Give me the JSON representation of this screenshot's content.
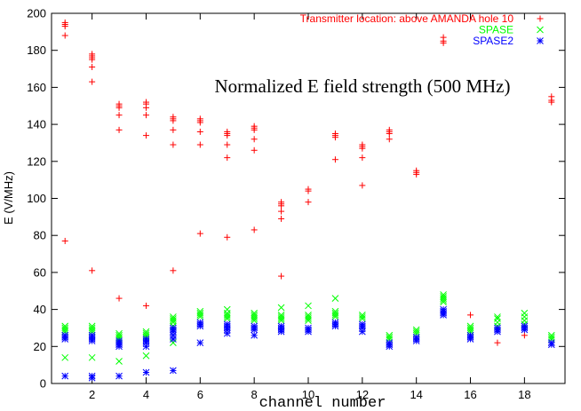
{
  "chart_data": {
    "type": "scatter",
    "title": "Normalized E field strength (500 MHz)",
    "xlabel": "channel number",
    "ylabel": "E (V/MHz)",
    "xlim": [
      0.5,
      19.5
    ],
    "ylim": [
      0,
      200
    ],
    "xticks": [
      2,
      4,
      6,
      8,
      10,
      12,
      14,
      16,
      18
    ],
    "yticks": [
      0,
      20,
      40,
      60,
      80,
      100,
      120,
      140,
      160,
      180,
      200
    ],
    "grid": false,
    "legend_position": "top-right",
    "series": [
      {
        "name": "Transmitter location: above AMANDA hole 10",
        "color": "#ff0000",
        "marker": "plus",
        "points": [
          [
            1,
            195
          ],
          [
            1,
            194
          ],
          [
            1,
            193
          ],
          [
            1,
            188
          ],
          [
            1,
            77
          ],
          [
            2,
            178
          ],
          [
            2,
            177
          ],
          [
            2,
            176
          ],
          [
            2,
            175
          ],
          [
            2,
            171
          ],
          [
            2,
            163
          ],
          [
            2,
            61
          ],
          [
            3,
            151
          ],
          [
            3,
            150
          ],
          [
            3,
            149
          ],
          [
            3,
            145
          ],
          [
            3,
            137
          ],
          [
            3,
            46
          ],
          [
            4,
            152
          ],
          [
            4,
            151
          ],
          [
            4,
            149
          ],
          [
            4,
            145
          ],
          [
            4,
            134
          ],
          [
            4,
            42
          ],
          [
            5,
            144
          ],
          [
            5,
            143
          ],
          [
            5,
            142
          ],
          [
            5,
            137
          ],
          [
            5,
            129
          ],
          [
            5,
            61
          ],
          [
            6,
            143
          ],
          [
            6,
            142
          ],
          [
            6,
            141
          ],
          [
            6,
            136
          ],
          [
            6,
            129
          ],
          [
            6,
            81
          ],
          [
            7,
            136
          ],
          [
            7,
            135
          ],
          [
            7,
            134
          ],
          [
            7,
            129
          ],
          [
            7,
            122
          ],
          [
            7,
            79
          ],
          [
            8,
            139
          ],
          [
            8,
            138
          ],
          [
            8,
            137
          ],
          [
            8,
            132
          ],
          [
            8,
            126
          ],
          [
            8,
            83
          ],
          [
            9,
            98
          ],
          [
            9,
            97
          ],
          [
            9,
            96
          ],
          [
            9,
            93
          ],
          [
            9,
            89
          ],
          [
            9,
            58
          ],
          [
            10,
            105
          ],
          [
            10,
            104
          ],
          [
            10,
            98
          ],
          [
            11,
            135
          ],
          [
            11,
            134
          ],
          [
            11,
            133
          ],
          [
            11,
            121
          ],
          [
            12,
            129
          ],
          [
            12,
            128
          ],
          [
            12,
            127
          ],
          [
            12,
            122
          ],
          [
            12,
            107
          ],
          [
            13,
            137
          ],
          [
            13,
            136
          ],
          [
            13,
            135
          ],
          [
            13,
            132
          ],
          [
            14,
            115
          ],
          [
            14,
            114
          ],
          [
            14,
            113
          ],
          [
            15,
            187
          ],
          [
            15,
            185
          ],
          [
            15,
            184
          ],
          [
            16,
            37
          ],
          [
            17,
            22
          ],
          [
            18,
            26
          ],
          [
            19,
            155
          ],
          [
            19,
            153
          ],
          [
            19,
            152
          ]
        ]
      },
      {
        "name": "SPASE",
        "color": "#00ff00",
        "marker": "cross",
        "points": [
          [
            1,
            31
          ],
          [
            1,
            30
          ],
          [
            1,
            29
          ],
          [
            1,
            28
          ],
          [
            1,
            14
          ],
          [
            2,
            31
          ],
          [
            2,
            30
          ],
          [
            2,
            29
          ],
          [
            2,
            28
          ],
          [
            2,
            14
          ],
          [
            3,
            27
          ],
          [
            3,
            26
          ],
          [
            3,
            25
          ],
          [
            3,
            24
          ],
          [
            3,
            12
          ],
          [
            4,
            28
          ],
          [
            4,
            27
          ],
          [
            4,
            26
          ],
          [
            4,
            25
          ],
          [
            4,
            15
          ],
          [
            5,
            36
          ],
          [
            5,
            35
          ],
          [
            5,
            34
          ],
          [
            5,
            33
          ],
          [
            5,
            31
          ],
          [
            5,
            22
          ],
          [
            6,
            39
          ],
          [
            6,
            38
          ],
          [
            6,
            37
          ],
          [
            6,
            36
          ],
          [
            7,
            40
          ],
          [
            7,
            38
          ],
          [
            7,
            37
          ],
          [
            7,
            36
          ],
          [
            7,
            35
          ],
          [
            8,
            38
          ],
          [
            8,
            37
          ],
          [
            8,
            36
          ],
          [
            8,
            35
          ],
          [
            8,
            34
          ],
          [
            9,
            41
          ],
          [
            9,
            37
          ],
          [
            9,
            36
          ],
          [
            9,
            35
          ],
          [
            9,
            34
          ],
          [
            10,
            42
          ],
          [
            10,
            37
          ],
          [
            10,
            36
          ],
          [
            10,
            35
          ],
          [
            10,
            34
          ],
          [
            11,
            46
          ],
          [
            11,
            39
          ],
          [
            11,
            38
          ],
          [
            11,
            37
          ],
          [
            11,
            36
          ],
          [
            12,
            37
          ],
          [
            12,
            36
          ],
          [
            12,
            35
          ],
          [
            13,
            26
          ],
          [
            13,
            25
          ],
          [
            13,
            24
          ],
          [
            14,
            29
          ],
          [
            14,
            28
          ],
          [
            14,
            27
          ],
          [
            15,
            48
          ],
          [
            15,
            47
          ],
          [
            15,
            46
          ],
          [
            15,
            45
          ],
          [
            15,
            44
          ],
          [
            16,
            31
          ],
          [
            16,
            30
          ],
          [
            16,
            29
          ],
          [
            16,
            28
          ],
          [
            17,
            36
          ],
          [
            17,
            35
          ],
          [
            17,
            33
          ],
          [
            17,
            31
          ],
          [
            18,
            38
          ],
          [
            18,
            36
          ],
          [
            18,
            34
          ],
          [
            18,
            32
          ],
          [
            19,
            26
          ],
          [
            19,
            25
          ],
          [
            19,
            24
          ]
        ]
      },
      {
        "name": "SPASE2",
        "color": "#0000ff",
        "marker": "star",
        "points": [
          [
            1,
            26
          ],
          [
            1,
            25
          ],
          [
            1,
            24
          ],
          [
            1,
            4
          ],
          [
            2,
            26
          ],
          [
            2,
            25
          ],
          [
            2,
            24
          ],
          [
            2,
            23
          ],
          [
            2,
            4
          ],
          [
            2,
            3
          ],
          [
            3,
            23
          ],
          [
            3,
            22
          ],
          [
            3,
            21
          ],
          [
            3,
            20
          ],
          [
            3,
            4
          ],
          [
            4,
            24
          ],
          [
            4,
            23
          ],
          [
            4,
            22
          ],
          [
            4,
            20
          ],
          [
            4,
            6
          ],
          [
            5,
            30
          ],
          [
            5,
            29
          ],
          [
            5,
            28
          ],
          [
            5,
            26
          ],
          [
            5,
            24
          ],
          [
            5,
            7
          ],
          [
            6,
            33
          ],
          [
            6,
            32
          ],
          [
            6,
            31
          ],
          [
            6,
            22
          ],
          [
            7,
            32
          ],
          [
            7,
            31
          ],
          [
            7,
            30
          ],
          [
            7,
            29
          ],
          [
            7,
            27
          ],
          [
            8,
            31
          ],
          [
            8,
            30
          ],
          [
            8,
            29
          ],
          [
            8,
            26
          ],
          [
            9,
            31
          ],
          [
            9,
            30
          ],
          [
            9,
            29
          ],
          [
            9,
            28
          ],
          [
            10,
            30
          ],
          [
            10,
            29
          ],
          [
            10,
            28
          ],
          [
            11,
            33
          ],
          [
            11,
            32
          ],
          [
            11,
            31
          ],
          [
            12,
            32
          ],
          [
            12,
            31
          ],
          [
            12,
            30
          ],
          [
            12,
            28
          ],
          [
            13,
            22
          ],
          [
            13,
            21
          ],
          [
            13,
            20
          ],
          [
            14,
            25
          ],
          [
            14,
            24
          ],
          [
            14,
            23
          ],
          [
            15,
            40
          ],
          [
            15,
            39
          ],
          [
            15,
            38
          ],
          [
            15,
            37
          ],
          [
            16,
            26
          ],
          [
            16,
            25
          ],
          [
            16,
            24
          ],
          [
            17,
            30
          ],
          [
            17,
            29
          ],
          [
            17,
            28
          ],
          [
            18,
            31
          ],
          [
            18,
            30
          ],
          [
            18,
            29
          ],
          [
            19,
            22
          ],
          [
            19,
            21
          ]
        ]
      }
    ]
  }
}
